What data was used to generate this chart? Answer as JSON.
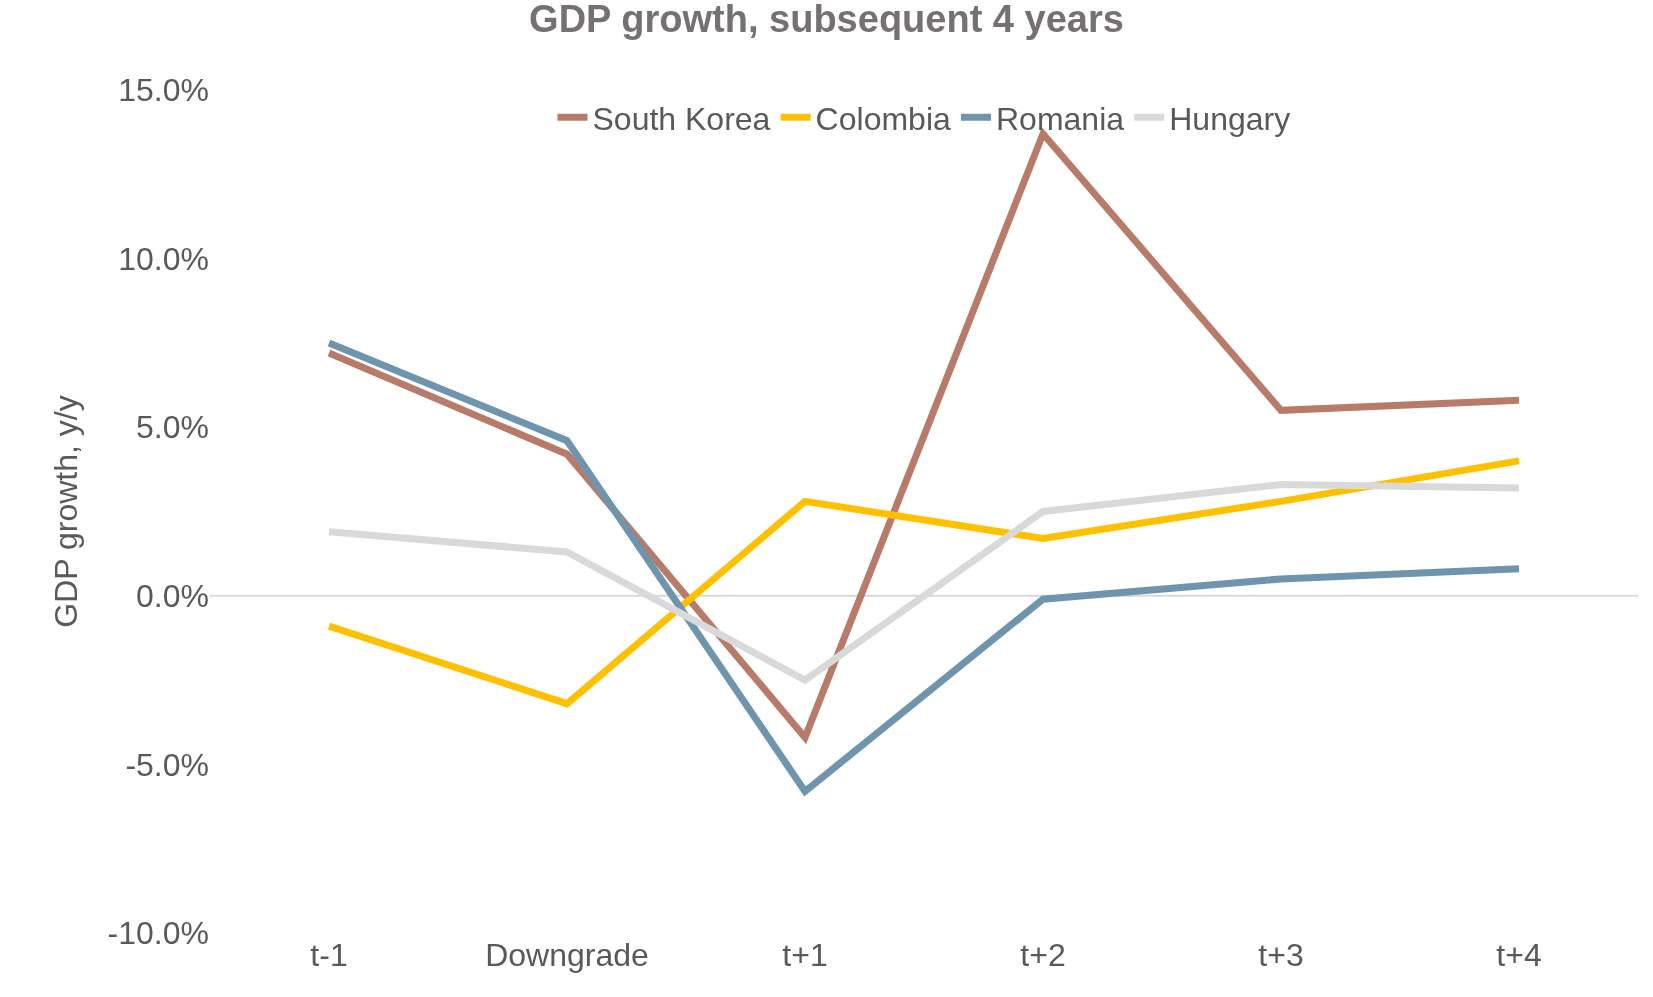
{
  "chart_data": {
    "type": "line",
    "title": "GDP growth, subsequent 4 years",
    "ylabel": "GDP growth, y/y",
    "categories": [
      "t-1",
      "Downgrade",
      "t+1",
      "t+2",
      "t+3",
      "t+4"
    ],
    "series": [
      {
        "name": "South Korea",
        "color": "#b87b6a",
        "values": [
          7.2,
          4.2,
          -4.2,
          13.7,
          5.5,
          5.8
        ]
      },
      {
        "name": "Colombia",
        "color": "#ffc000",
        "values": [
          -0.9,
          -3.2,
          2.8,
          1.7,
          2.8,
          4.0
        ]
      },
      {
        "name": "Romania",
        "color": "#6e95ad",
        "values": [
          7.5,
          4.6,
          -5.8,
          -0.1,
          0.5,
          0.8
        ]
      },
      {
        "name": "Hungary",
        "color": "#d9d9d9",
        "values": [
          1.9,
          1.3,
          -2.5,
          2.5,
          3.3,
          3.2
        ]
      }
    ],
    "ylim": [
      -10,
      15
    ],
    "yticks": [
      {
        "value": -10,
        "label": "-10.0%"
      },
      {
        "value": -5,
        "label": "-5.0%"
      },
      {
        "value": 0,
        "label": "0.0%"
      },
      {
        "value": 5,
        "label": "5.0%"
      },
      {
        "value": 10,
        "label": "10.0%"
      },
      {
        "value": 15,
        "label": "15.0%"
      }
    ],
    "ref_lines": [
      {
        "axis": "y",
        "value": 0,
        "color": "#d9d9d9"
      }
    ],
    "grid": false,
    "legend": "top",
    "marker": "none",
    "line_style": "solid"
  }
}
